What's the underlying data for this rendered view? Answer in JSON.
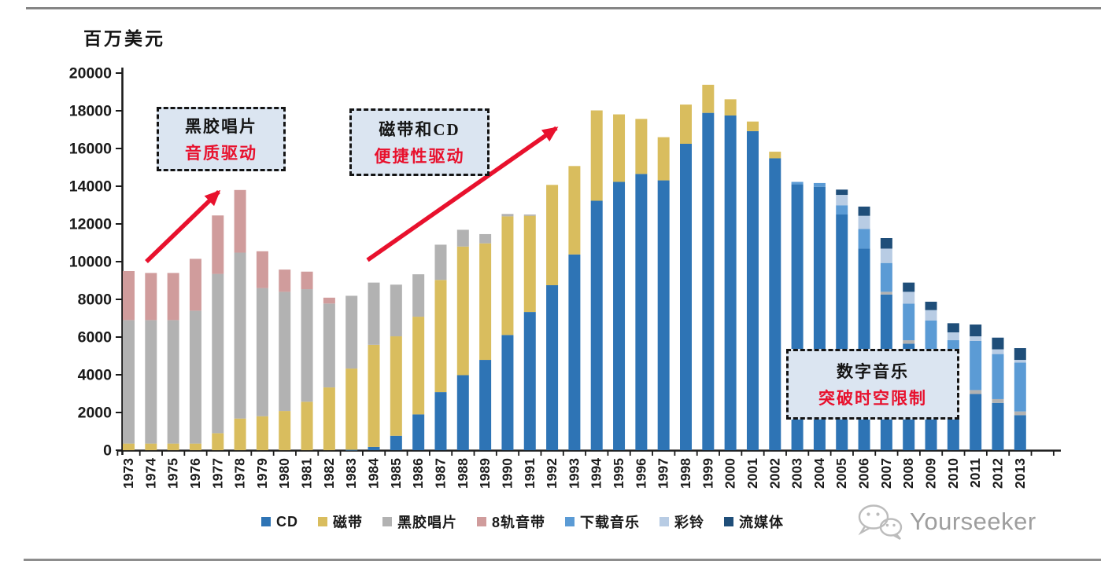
{
  "page": {
    "unit_label": "百万美元",
    "watermark": "Yourseeker"
  },
  "annotations": [
    {
      "id": "vinyl-era",
      "line1": "黑胶唱片",
      "line2": "音质驱动"
    },
    {
      "id": "tape-cd-era",
      "line1": "磁带和CD",
      "line2": "便捷性驱动"
    },
    {
      "id": "digital-era",
      "line1": "数字音乐",
      "line2": "突破时空限制"
    }
  ],
  "colors": {
    "cd": "#2e74b5",
    "cassette": "#d9bd5e",
    "vinyl": "#b2b2b2",
    "eight_track": "#d09c9c",
    "download": "#5b9bd5",
    "ringtone": "#b8cce4",
    "streaming": "#1f4e79",
    "accent_red": "#e8112d",
    "callout_fill": "#dbe5f1",
    "axis": "#1a1a1a",
    "watermark_gray": "#9e9e9e"
  },
  "chart_data": {
    "type": "bar",
    "stacked": true,
    "title": "",
    "xlabel": "",
    "ylabel": "百万美元",
    "ylim": [
      0,
      20000
    ],
    "ytick_step": 2000,
    "grid": false,
    "legend_position": "bottom",
    "categories": [
      "1973",
      "1974",
      "1975",
      "1976",
      "1977",
      "1978",
      "1979",
      "1980",
      "1981",
      "1982",
      "1983",
      "1984",
      "1985",
      "1986",
      "1987",
      "1988",
      "1989",
      "1990",
      "1991",
      "1992",
      "1993",
      "1994",
      "1995",
      "1996",
      "1997",
      "1998",
      "1999",
      "2000",
      "2001",
      "2002",
      "2003",
      "2004",
      "2005",
      "2006",
      "2007",
      "2008",
      "2009",
      "2010",
      "2011",
      "2012",
      "2013"
    ],
    "series": [
      {
        "name": "CD",
        "color": "#2e74b5",
        "values": [
          0,
          0,
          0,
          0,
          0,
          0,
          0,
          0,
          0,
          0,
          20,
          170,
          760,
          1900,
          3080,
          3980,
          4790,
          6110,
          7330,
          8750,
          10380,
          13230,
          14230,
          14650,
          14310,
          16250,
          17890,
          17750,
          16920,
          15480,
          14100,
          13970,
          12500,
          10690,
          8260,
          5650,
          5100,
          3900,
          2980,
          2510,
          1860
        ]
      },
      {
        "name": "磁带",
        "color": "#d9bd5e",
        "values": [
          350,
          350,
          350,
          350,
          900,
          1680,
          1800,
          2080,
          2570,
          3330,
          4310,
          5420,
          5280,
          5180,
          5950,
          6820,
          6180,
          6290,
          5100,
          5320,
          4690,
          4790,
          3580,
          2920,
          2290,
          2080,
          1490,
          860,
          510,
          350,
          0,
          0,
          0,
          0,
          0,
          0,
          0,
          0,
          0,
          0,
          0
        ]
      },
      {
        "name": "黑胶唱片",
        "color": "#b2b2b2",
        "values": [
          6550,
          6550,
          6550,
          7050,
          8450,
          8800,
          6800,
          6320,
          5970,
          4450,
          3860,
          3300,
          2740,
          2250,
          1870,
          890,
          490,
          130,
          70,
          0,
          0,
          0,
          0,
          0,
          0,
          0,
          0,
          0,
          0,
          0,
          0,
          0,
          0,
          0,
          140,
          180,
          175,
          160,
          210,
          200,
          195
        ]
      },
      {
        "name": "8轨音带",
        "color": "#d09c9c",
        "values": [
          2600,
          2500,
          2500,
          2750,
          3100,
          3320,
          1950,
          1180,
          930,
          310,
          0,
          0,
          0,
          0,
          0,
          0,
          0,
          0,
          0,
          0,
          0,
          0,
          0,
          0,
          0,
          0,
          0,
          0,
          0,
          0,
          0,
          0,
          0,
          0,
          0,
          0,
          0,
          0,
          0,
          0,
          0
        ]
      },
      {
        "name": "下载音乐",
        "color": "#5b9bd5",
        "values": [
          0,
          0,
          0,
          0,
          0,
          0,
          0,
          0,
          0,
          0,
          0,
          0,
          0,
          0,
          0,
          0,
          0,
          0,
          0,
          0,
          0,
          0,
          0,
          0,
          0,
          0,
          0,
          0,
          0,
          0,
          130,
          200,
          490,
          1040,
          1530,
          1940,
          1600,
          1775,
          2610,
          2390,
          2590
        ]
      },
      {
        "name": "彩铃",
        "color": "#b8cce4",
        "values": [
          0,
          0,
          0,
          0,
          0,
          0,
          0,
          0,
          0,
          0,
          0,
          0,
          0,
          0,
          0,
          0,
          0,
          0,
          0,
          0,
          0,
          0,
          0,
          0,
          0,
          0,
          0,
          0,
          0,
          0,
          0,
          0,
          550,
          700,
          760,
          630,
          555,
          415,
          240,
          250,
          145
        ]
      },
      {
        "name": "流媒体",
        "color": "#1f4e79",
        "values": [
          0,
          0,
          0,
          0,
          0,
          0,
          0,
          0,
          0,
          0,
          0,
          0,
          0,
          0,
          0,
          0,
          0,
          0,
          0,
          0,
          0,
          0,
          0,
          0,
          0,
          0,
          0,
          0,
          0,
          0,
          0,
          0,
          280,
          490,
          560,
          490,
          445,
          485,
          625,
          620,
          625
        ]
      }
    ]
  }
}
